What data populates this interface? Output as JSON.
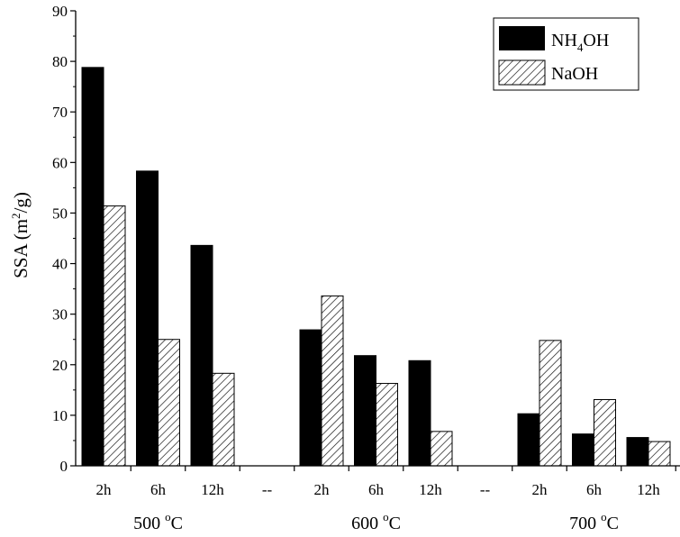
{
  "chart_data": {
    "type": "bar",
    "ylabel": {
      "main": "SSA (m",
      "sup": "2",
      "tail": "/g)"
    },
    "ylim": [
      0,
      90
    ],
    "yticks": [
      0,
      10,
      20,
      30,
      40,
      50,
      60,
      70,
      80,
      90
    ],
    "categories": [
      "2h",
      "6h",
      "12h",
      "--",
      "2h",
      "6h",
      "12h",
      "--",
      "2h",
      "6h",
      "12h"
    ],
    "groups": [
      {
        "label": {
          "main": "500 ",
          "sup": "o",
          "tail": "C"
        },
        "span": [
          0,
          2
        ]
      },
      {
        "label": {
          "main": "600 ",
          "sup": "o",
          "tail": "C"
        },
        "span": [
          4,
          6
        ]
      },
      {
        "label": {
          "main": "700 ",
          "sup": "o",
          "tail": "C"
        },
        "span": [
          8,
          10
        ]
      }
    ],
    "series": [
      {
        "name": "NH4OH",
        "name_parts": {
          "main": "NH",
          "sub": "4",
          "tail": "OH"
        },
        "fill": "solid",
        "color": "#000000",
        "values": [
          78.8,
          58.3,
          43.6,
          null,
          26.9,
          21.8,
          20.8,
          null,
          10.3,
          6.3,
          5.6
        ]
      },
      {
        "name": "NaOH",
        "name_parts": {
          "main": "NaOH",
          "sub": "",
          "tail": ""
        },
        "fill": "hatched",
        "color": "#000000",
        "values": [
          51.4,
          25.0,
          18.3,
          null,
          33.6,
          16.3,
          6.8,
          null,
          24.8,
          13.1,
          4.8
        ]
      }
    ],
    "legend": "top-right",
    "grid": false
  }
}
